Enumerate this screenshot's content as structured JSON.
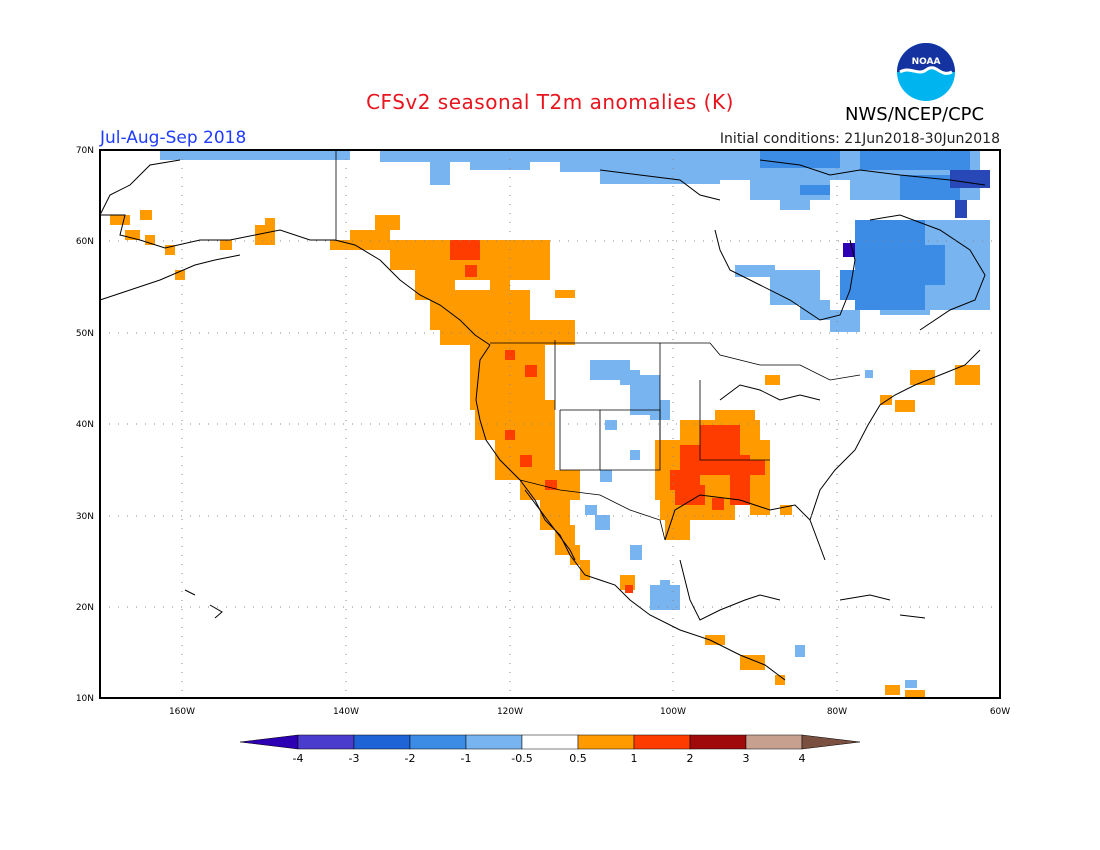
{
  "header": {
    "title": "CFSv2 seasonal T2m anomalies (K)",
    "season": "Jul-Aug-Sep 2018",
    "initial_conditions": "Initial conditions: 21Jun2018-30Jun2018",
    "agency": "NWS/NCEP/CPC",
    "logo_text": "NOAA"
  },
  "axes": {
    "lat_labels": [
      "70N",
      "60N",
      "50N",
      "40N",
      "30N",
      "20N",
      "10N"
    ],
    "lon_labels": [
      "160W",
      "140W",
      "120W",
      "100W",
      "80W",
      "60W"
    ]
  },
  "colorbar": {
    "labels": [
      "-4",
      "-3",
      "-2",
      "-1",
      "-0.5",
      "0.5",
      "1",
      "2",
      "3",
      "4"
    ],
    "colors": [
      "#2e00b4",
      "#4a3ccc",
      "#1e64d6",
      "#3c8ce6",
      "#78b4f0",
      "#ffffff",
      "#ff9a00",
      "#ff3c00",
      "#a00a0a",
      "#c8a090",
      "#7a5040"
    ]
  },
  "colors": {
    "title": "#e8141e",
    "season": "#1e3cff",
    "grid": "#888888",
    "coast": "#000000"
  },
  "map_data": {
    "region": "North America",
    "lat_range": [
      10,
      70
    ],
    "lon_range": [
      -172,
      -60
    ],
    "anomaly_regions": [
      {
        "area": "Pacific Northwest / Western Canada",
        "anomaly": "0.5 to 1"
      },
      {
        "area": "South-central United States",
        "anomaly": "1 to 2"
      },
      {
        "area": "Hudson Bay / Eastern Canada",
        "anomaly": "-1 to -3"
      },
      {
        "area": "Arctic coast",
        "anomaly": "-0.5 to -2"
      }
    ]
  }
}
